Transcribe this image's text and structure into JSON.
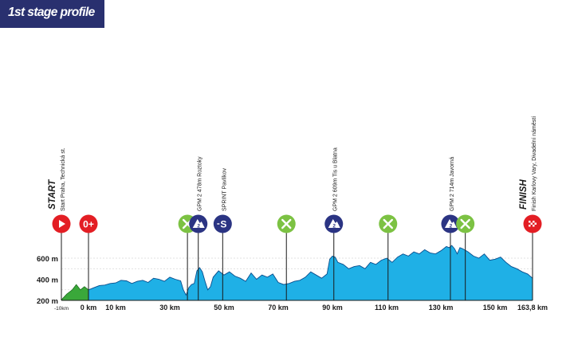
{
  "header": {
    "title": "1st stage profile"
  },
  "colors": {
    "header_bg": "#29306f",
    "profile_fill": "#1fb0e6",
    "prologue_fill": "#3aa83a",
    "marker_red": "#e31e24",
    "marker_green": "#7cc243",
    "marker_navy": "#2b3483",
    "text": "#1a1a1a"
  },
  "chart_data": {
    "type": "area",
    "xlabel": "",
    "ylabel": "",
    "xlim": [
      -10,
      163.8
    ],
    "ylim": [
      200,
      800
    ],
    "grid": true,
    "y_ticks": [
      {
        "value": 200,
        "label": "200 m"
      },
      {
        "value": 400,
        "label": "400 m"
      },
      {
        "value": 600,
        "label": "600 m"
      }
    ],
    "x_ticks": [
      {
        "value": -10,
        "label": "-10km"
      },
      {
        "value": 0,
        "label": "0 km"
      },
      {
        "value": 10,
        "label": "10 km"
      },
      {
        "value": 30,
        "label": "30 km"
      },
      {
        "value": 50,
        "label": "50 km"
      },
      {
        "value": 70,
        "label": "70 km"
      },
      {
        "value": 90,
        "label": "90 km"
      },
      {
        "value": 110,
        "label": "110 km"
      },
      {
        "value": 130,
        "label": "130 km"
      },
      {
        "value": 150,
        "label": "150 km"
      },
      {
        "value": 163.8,
        "label": "163,8 km"
      }
    ],
    "prologue": {
      "x": [
        -10,
        -8,
        -6,
        -4.5,
        -3,
        -1.5,
        0
      ],
      "y": [
        205,
        260,
        300,
        350,
        300,
        330,
        300
      ]
    },
    "series": [
      {
        "x": [
          0,
          2,
          4,
          6,
          8,
          10,
          12,
          14,
          16,
          18,
          20,
          22,
          24,
          26,
          28,
          30,
          32,
          34,
          35,
          36,
          37,
          38,
          39,
          40,
          41,
          42,
          43,
          44,
          45,
          46,
          48,
          50,
          52,
          54,
          56,
          58,
          60,
          62,
          64,
          66,
          68,
          70,
          72,
          74,
          76,
          78,
          80,
          82,
          84,
          86,
          88,
          89,
          90,
          91,
          92,
          94,
          96,
          98,
          100,
          102,
          104,
          106,
          108,
          110,
          112,
          114,
          116,
          118,
          120,
          122,
          124,
          126,
          128,
          130,
          132,
          133,
          134,
          135,
          136,
          137,
          138,
          140,
          142,
          144,
          146,
          148,
          150,
          152,
          154,
          156,
          158,
          160,
          162,
          163.8
        ],
        "y": [
          300,
          320,
          340,
          345,
          360,
          365,
          390,
          385,
          360,
          380,
          390,
          370,
          410,
          400,
          380,
          420,
          400,
          385,
          300,
          250,
          320,
          350,
          360,
          480,
          510,
          470,
          380,
          300,
          330,
          420,
          480,
          440,
          470,
          430,
          410,
          380,
          460,
          400,
          440,
          420,
          450,
          370,
          350,
          360,
          380,
          390,
          420,
          470,
          440,
          410,
          450,
          590,
          620,
          610,
          560,
          540,
          500,
          520,
          530,
          500,
          560,
          540,
          580,
          600,
          560,
          610,
          640,
          620,
          660,
          640,
          680,
          650,
          640,
          670,
          710,
          700,
          720,
          690,
          640,
          700,
          690,
          660,
          620,
          600,
          640,
          580,
          590,
          610,
          560,
          520,
          500,
          470,
          450,
          410
        ]
      }
    ],
    "points": [
      {
        "km": -10,
        "icon": "play",
        "marker_text": "",
        "bold": "Start",
        "label": "Start Praha, Technická st.",
        "color": "#e31e24"
      },
      {
        "km": 0,
        "icon": "text",
        "marker_text": "0+",
        "label": "",
        "color": "#e31e24"
      },
      {
        "km": 36.5,
        "icon": "feed",
        "marker_text": "",
        "label": "",
        "color": "#7cc243"
      },
      {
        "km": 40.5,
        "icon": "mountain",
        "marker_text": "2",
        "label": "GPM 2 478m Roztoky",
        "color": "#2b3483"
      },
      {
        "km": 49.5,
        "icon": "sprint",
        "marker_text": "S",
        "label": "SPRINT Pavlíkov",
        "color": "#2b3483"
      },
      {
        "km": 73,
        "icon": "feed",
        "marker_text": "",
        "label": "",
        "color": "#7cc243"
      },
      {
        "km": 90.5,
        "icon": "mountain",
        "marker_text": "2",
        "label": "GPM 2 609m Tis u Blatna",
        "color": "#2b3483"
      },
      {
        "km": 110.5,
        "icon": "feed",
        "marker_text": "",
        "label": "",
        "color": "#7cc243"
      },
      {
        "km": 133.5,
        "icon": "mountain",
        "marker_text": "2",
        "label": "GPM 2 714m Javorná",
        "color": "#2b3483"
      },
      {
        "km": 139,
        "icon": "feed",
        "marker_text": "",
        "label": "",
        "color": "#7cc243"
      },
      {
        "km": 163.8,
        "icon": "flag",
        "marker_text": "",
        "bold": "Finish",
        "label": "Finish Karlovy Vary, Divadelní náměstí",
        "color": "#e31e24"
      }
    ]
  }
}
